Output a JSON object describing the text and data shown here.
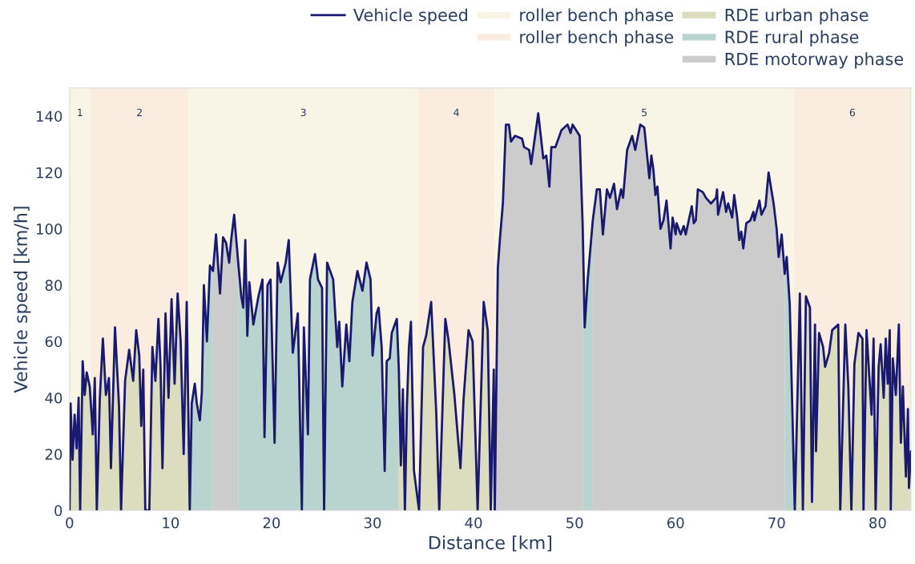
{
  "chart_data": {
    "type": "area",
    "xlabel": "Distance [km]",
    "ylabel": "Vehicle speed [km/h]",
    "xlim": [
      0,
      83.3
    ],
    "ylim": [
      0,
      150
    ],
    "xticks": [
      0,
      10,
      20,
      30,
      40,
      50,
      60,
      70,
      80
    ],
    "yticks": [
      0,
      20,
      40,
      60,
      80,
      100,
      120,
      140
    ],
    "legend": "top right",
    "bands": [
      {
        "axis": "x",
        "from": 0,
        "to": 2.06,
        "label": "1",
        "color": "#f8f5e6"
      },
      {
        "axis": "x",
        "from": 2.06,
        "to": 11.8,
        "label": "2",
        "color": "#faeddf"
      },
      {
        "axis": "x",
        "from": 11.8,
        "to": 34.5,
        "label": "3",
        "color": "#f8f5e6"
      },
      {
        "axis": "x",
        "from": 34.5,
        "to": 42.1,
        "label": "4",
        "color": "#faeddf"
      },
      {
        "axis": "x",
        "from": 42.1,
        "to": 71.7,
        "label": "5",
        "color": "#f8f5e6"
      },
      {
        "axis": "x",
        "from": 71.7,
        "to": 83.3,
        "label": "6",
        "color": "#faeddf"
      }
    ],
    "series": [
      {
        "name": "roller bench phase",
        "color": "#f8f5e6"
      },
      {
        "name": "roller bench phase",
        "color": "#faeddf"
      },
      {
        "name": "RDE urban phase",
        "color": "#dcdcbe",
        "x": [
          0,
          0.1,
          0.3,
          0.5,
          0.7,
          0.9,
          1.05,
          1.3,
          1.5,
          1.7,
          2.0,
          2.3,
          2.5,
          2.7,
          3.0,
          3.3,
          3.6,
          3.9,
          4.1,
          4.5,
          4.9,
          5.1,
          5.5,
          5.9,
          6.3,
          6.6,
          6.9,
          7.1,
          7.3,
          7.5,
          7.9,
          8.2,
          8.5,
          8.8,
          9.0,
          9.2,
          9.5,
          9.8,
          10.1,
          10.4,
          10.7,
          11.0,
          11.3,
          11.6,
          11.9,
          null,
          32.6,
          32.8,
          33.0,
          33.2,
          33.4,
          33.6,
          33.8,
          34.1,
          34.6,
          35.0,
          35.3,
          35.8,
          36.3,
          36.6,
          37.2,
          37.5,
          38.1,
          38.7,
          39.0,
          39.5,
          39.9,
          40.4,
          41.0,
          41.4,
          41.7,
          42.0,
          42.1,
          null,
          71.8,
          72.3,
          72.6,
          72.9,
          73.3,
          73.5,
          73.8,
          73.9,
          74.2,
          74.6,
          74.8,
          75.2,
          75.5,
          76.1,
          76.3,
          76.8,
          77.1,
          77.4,
          77.7,
          78.1,
          78.5,
          78.6,
          78.9,
          79.4,
          79.6,
          79.8,
          80.1,
          80.3,
          80.6,
          80.8,
          81.0,
          81.2,
          81.3,
          81.5,
          81.8,
          82.1,
          82.3,
          82.5,
          82.8,
          83.0,
          83.1,
          83.3
        ],
        "values": [
          0,
          38,
          18,
          34,
          22,
          40,
          0,
          53,
          41,
          49,
          44,
          27,
          47,
          0,
          40,
          61,
          41,
          47,
          15,
          65,
          37,
          0,
          46,
          57,
          46,
          64,
          55,
          30,
          50,
          0,
          0,
          58,
          46,
          68,
          52,
          15,
          70,
          40,
          75,
          45,
          77,
          60,
          20,
          74,
          0,
          null,
          50,
          16,
          43,
          0,
          37,
          58,
          67,
          14,
          0,
          58,
          62,
          74,
          35,
          0,
          68,
          61,
          41,
          15,
          39,
          64,
          60,
          0,
          74,
          64,
          0,
          50,
          0,
          null,
          0,
          77,
          0,
          76,
          72,
          3,
          66,
          21,
          63,
          58,
          51,
          56,
          64,
          66,
          0,
          66,
          44,
          0,
          52,
          63,
          61,
          0,
          64,
          34,
          61,
          0,
          51,
          59,
          40,
          61,
          45,
          64,
          0,
          54,
          41,
          66,
          24,
          44,
          12,
          36,
          8,
          21
        ]
      },
      {
        "name": "RDE rural phase",
        "color": "#b9d4cf",
        "x": [
          11.9,
          12.1,
          12.4,
          12.6,
          12.9,
          13.1,
          13.3,
          13.6,
          13.9,
          14.2,
          null,
          16.7,
          17.0,
          17.2,
          17.4,
          17.6,
          17.8,
          18.2,
          18.7,
          19.1,
          19.3,
          19.6,
          19.9,
          20.3,
          20.6,
          20.9,
          21.4,
          21.7,
          22.1,
          22.6,
          23.0,
          23.2,
          23.6,
          23.8,
          24.3,
          24.6,
          25.0,
          25.2,
          25.5,
          26.1,
          26.5,
          26.7,
          27.0,
          27.4,
          27.7,
          28.0,
          28.5,
          29.0,
          29.4,
          29.8,
          30.0,
          30.4,
          30.6,
          30.9,
          31.2,
          31.4,
          31.7,
          31.9,
          32.4,
          32.6,
          null,
          50.8,
          51.0,
          51.3,
          51.8,
          null,
          70.8,
          71.0,
          71.3,
          71.8
        ],
        "values": [
          0,
          38,
          45,
          38,
          32,
          42,
          80,
          60,
          87,
          85,
          null,
          88,
          76,
          72,
          96,
          62,
          81,
          66,
          76,
          82,
          26,
          80,
          82,
          24,
          88,
          81,
          88,
          96,
          56,
          70,
          0,
          65,
          27,
          82,
          91,
          82,
          79,
          0,
          88,
          82,
          58,
          67,
          44,
          66,
          53,
          74,
          85,
          78,
          88,
          82,
          55,
          70,
          72,
          58,
          14,
          53,
          54,
          63,
          68,
          50,
          null,
          101,
          65,
          82,
          103,
          null,
          84,
          90,
          73,
          0
        ]
      },
      {
        "name": "RDE motorway phase",
        "color": "#cccccc",
        "x": [
          14.2,
          14.5,
          14.9,
          15.2,
          15.5,
          15.8,
          16.0,
          16.3,
          16.7,
          null,
          42.1,
          42.4,
          42.6,
          42.9,
          43.2,
          43.5,
          43.7,
          44.1,
          44.8,
          45.0,
          45.5,
          45.7,
          46.4,
          46.9,
          47.2,
          47.5,
          47.7,
          48.1,
          48.7,
          49.3,
          49.6,
          49.8,
          50.5,
          50.8,
          null,
          51.8,
          52.2,
          52.5,
          52.8,
          53.2,
          53.5,
          53.9,
          54.2,
          54.6,
          54.8,
          55.2,
          55.7,
          56.0,
          56.5,
          56.9,
          57.4,
          57.6,
          57.8,
          58.0,
          58.2,
          58.5,
          58.8,
          59.1,
          59.5,
          59.7,
          60.0,
          60.1,
          60.5,
          60.8,
          61.0,
          61.6,
          61.8,
          62.0,
          62.2,
          62.7,
          63.0,
          63.5,
          64.0,
          64.1,
          64.2,
          64.7,
          65.0,
          65.2,
          65.6,
          65.8,
          66.1,
          66.3,
          66.5,
          66.7,
          67.0,
          67.4,
          67.7,
          67.8,
          68.3,
          68.5,
          68.9,
          69.2,
          69.7,
          70.0,
          70.2,
          70.5,
          70.8
        ],
        "values": [
          85,
          98,
          77,
          97,
          95,
          88,
          96,
          105,
          88,
          null,
          0,
          86,
          96,
          109,
          137,
          137,
          131,
          133,
          132,
          129,
          128,
          123,
          141,
          125,
          126,
          115,
          129,
          129,
          135,
          137,
          134,
          137,
          133,
          101,
          null,
          103,
          114,
          114,
          98,
          114,
          111,
          116,
          107,
          114,
          111,
          128,
          133,
          128,
          137,
          136,
          118,
          126,
          121,
          112,
          115,
          100,
          103,
          110,
          93,
          104,
          98,
          102,
          98,
          101,
          98,
          108,
          102,
          103,
          114,
          113,
          111,
          109,
          111,
          114,
          105,
          113,
          106,
          109,
          104,
          112,
          104,
          96,
          99,
          93,
          102,
          103,
          106,
          103,
          110,
          105,
          108,
          120,
          109,
          100,
          90,
          98,
          84
        ]
      },
      {
        "name": "Vehicle speed",
        "type": "line",
        "color": "#191970",
        "x": [
          0,
          0.1,
          0.3,
          0.5,
          0.7,
          0.9,
          1.05,
          1.3,
          1.5,
          1.7,
          2.0,
          2.3,
          2.5,
          2.7,
          3.0,
          3.3,
          3.6,
          3.9,
          4.1,
          4.5,
          4.9,
          5.1,
          5.5,
          5.9,
          6.3,
          6.6,
          6.9,
          7.1,
          7.3,
          7.5,
          7.9,
          8.2,
          8.5,
          8.8,
          9.0,
          9.2,
          9.5,
          9.8,
          10.1,
          10.4,
          10.7,
          11.0,
          11.3,
          11.6,
          11.9,
          12.1,
          12.4,
          12.6,
          12.9,
          13.1,
          13.3,
          13.6,
          13.9,
          14.2,
          14.5,
          14.9,
          15.2,
          15.5,
          15.8,
          16.0,
          16.3,
          16.7,
          17.0,
          17.2,
          17.4,
          17.6,
          17.8,
          18.2,
          18.7,
          19.1,
          19.3,
          19.6,
          19.9,
          20.3,
          20.6,
          20.9,
          21.4,
          21.7,
          22.1,
          22.6,
          23.0,
          23.2,
          23.6,
          23.8,
          24.3,
          24.6,
          25.0,
          25.2,
          25.5,
          26.1,
          26.5,
          26.7,
          27.0,
          27.4,
          27.7,
          28.0,
          28.5,
          29.0,
          29.4,
          29.8,
          30.0,
          30.4,
          30.6,
          30.9,
          31.2,
          31.4,
          31.7,
          31.9,
          32.4,
          32.6,
          32.8,
          33.0,
          33.2,
          33.4,
          33.6,
          33.8,
          34.1,
          34.6,
          35.0,
          35.3,
          35.8,
          36.3,
          36.6,
          37.2,
          37.5,
          38.1,
          38.7,
          39.0,
          39.5,
          39.9,
          40.4,
          41.0,
          41.4,
          41.7,
          42.0,
          42.1,
          42.4,
          42.6,
          42.9,
          43.2,
          43.5,
          43.7,
          44.1,
          44.8,
          45.0,
          45.5,
          45.7,
          46.4,
          46.9,
          47.2,
          47.5,
          47.7,
          48.1,
          48.7,
          49.3,
          49.6,
          49.8,
          50.5,
          50.8,
          51.0,
          51.3,
          51.8,
          52.2,
          52.5,
          52.8,
          53.2,
          53.5,
          53.9,
          54.2,
          54.6,
          54.8,
          55.2,
          55.7,
          56.0,
          56.5,
          56.9,
          57.4,
          57.6,
          57.8,
          58.0,
          58.2,
          58.5,
          58.8,
          59.1,
          59.5,
          59.7,
          60.0,
          60.1,
          60.5,
          60.8,
          61.0,
          61.6,
          61.8,
          62.0,
          62.2,
          62.7,
          63.0,
          63.5,
          64.0,
          64.1,
          64.2,
          64.7,
          65.0,
          65.2,
          65.6,
          65.8,
          66.1,
          66.3,
          66.5,
          66.7,
          67.0,
          67.4,
          67.7,
          67.8,
          68.3,
          68.5,
          68.9,
          69.2,
          69.7,
          70.0,
          70.2,
          70.5,
          70.8,
          71.0,
          71.3,
          71.8,
          72.3,
          72.6,
          72.9,
          73.3,
          73.5,
          73.8,
          73.9,
          74.2,
          74.6,
          74.8,
          75.2,
          75.5,
          76.1,
          76.3,
          76.8,
          77.1,
          77.4,
          77.7,
          78.1,
          78.5,
          78.6,
          78.9,
          79.4,
          79.6,
          79.8,
          80.1,
          80.3,
          80.6,
          80.8,
          81.0,
          81.2,
          81.3,
          81.5,
          81.8,
          82.1,
          82.3,
          82.5,
          82.8,
          83.0,
          83.1,
          83.3
        ],
        "values": [
          0,
          38,
          18,
          34,
          22,
          40,
          0,
          53,
          41,
          49,
          44,
          27,
          47,
          0,
          40,
          61,
          41,
          47,
          15,
          65,
          37,
          0,
          46,
          57,
          46,
          64,
          55,
          30,
          50,
          0,
          0,
          58,
          46,
          68,
          52,
          15,
          70,
          40,
          75,
          45,
          77,
          60,
          20,
          74,
          0,
          38,
          45,
          38,
          32,
          42,
          80,
          60,
          87,
          85,
          98,
          77,
          97,
          95,
          88,
          96,
          105,
          88,
          76,
          72,
          96,
          62,
          81,
          66,
          76,
          82,
          26,
          80,
          82,
          24,
          88,
          81,
          88,
          96,
          56,
          70,
          0,
          65,
          27,
          82,
          91,
          82,
          79,
          0,
          88,
          82,
          58,
          67,
          44,
          66,
          53,
          74,
          85,
          78,
          88,
          82,
          55,
          70,
          72,
          58,
          14,
          53,
          54,
          63,
          68,
          50,
          16,
          43,
          0,
          37,
          58,
          67,
          14,
          0,
          58,
          62,
          74,
          35,
          0,
          68,
          61,
          41,
          15,
          39,
          64,
          60,
          0,
          74,
          64,
          0,
          50,
          0,
          86,
          96,
          109,
          137,
          137,
          131,
          133,
          132,
          129,
          128,
          123,
          141,
          125,
          126,
          115,
          129,
          129,
          135,
          137,
          134,
          137,
          133,
          101,
          65,
          82,
          103,
          114,
          114,
          98,
          114,
          111,
          116,
          107,
          114,
          111,
          128,
          133,
          128,
          137,
          136,
          118,
          126,
          121,
          112,
          115,
          100,
          103,
          110,
          93,
          104,
          98,
          102,
          98,
          101,
          98,
          108,
          102,
          103,
          114,
          113,
          111,
          109,
          111,
          114,
          105,
          113,
          106,
          109,
          104,
          112,
          104,
          96,
          99,
          93,
          102,
          103,
          106,
          103,
          110,
          105,
          108,
          120,
          109,
          100,
          90,
          98,
          84,
          90,
          73,
          0,
          77,
          0,
          76,
          72,
          3,
          66,
          21,
          63,
          58,
          51,
          56,
          64,
          66,
          0,
          66,
          44,
          0,
          52,
          63,
          61,
          0,
          64,
          34,
          61,
          0,
          51,
          59,
          40,
          61,
          45,
          64,
          0,
          54,
          41,
          66,
          24,
          44,
          12,
          36,
          8,
          21
        ]
      }
    ]
  }
}
